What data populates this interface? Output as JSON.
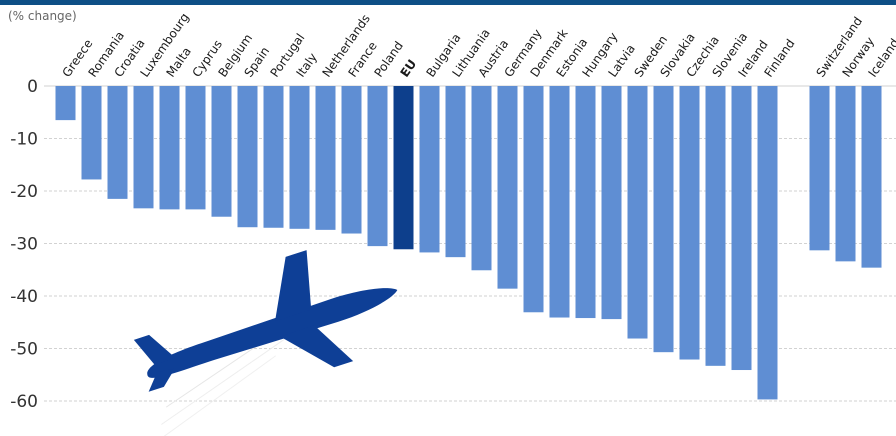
{
  "chart_data": {
    "type": "bar",
    "ylabel": "(% change)",
    "ylim": [
      -62,
      0
    ],
    "yticks": [
      0,
      -10,
      -20,
      -30,
      -40,
      -50,
      -60
    ],
    "grid": true,
    "highlight": "EU",
    "colors": {
      "bar": "#5f8ed3",
      "highlight": "#0d3f8c",
      "grid": "#d2d2d2",
      "plane": "#0e3f96"
    },
    "categories": [
      "Greece",
      "Romania",
      "Croatia",
      "Luxembourg",
      "Malta",
      "Cyprus",
      "Belgium",
      "Spain",
      "Portugal",
      "Italy",
      "Netherlands",
      "France",
      "Poland",
      "EU",
      "Bulgaria",
      "Lithuania",
      "Austria",
      "Germany",
      "Denmark",
      "Estonia",
      "Hungary",
      "Latvia",
      "Sweden",
      "Slovakia",
      "Czechia",
      "Slovenia",
      "Ireland",
      "Finland",
      "",
      "Switzerland",
      "Norway",
      "Iceland"
    ],
    "values": [
      -6.5,
      -17.8,
      -21.5,
      -23.3,
      -23.5,
      -23.5,
      -24.9,
      -26.9,
      -27,
      -27.2,
      -27.4,
      -28.1,
      -30.5,
      -31.1,
      -31.7,
      -32.6,
      -35.1,
      -38.6,
      -43.1,
      -44.1,
      -44.2,
      -44.4,
      -48.1,
      -50.7,
      -52.1,
      -53.3,
      -54.1,
      -59.7,
      null,
      -31.3,
      -33.4,
      -34.6
    ],
    "icon": "airplane-icon"
  }
}
